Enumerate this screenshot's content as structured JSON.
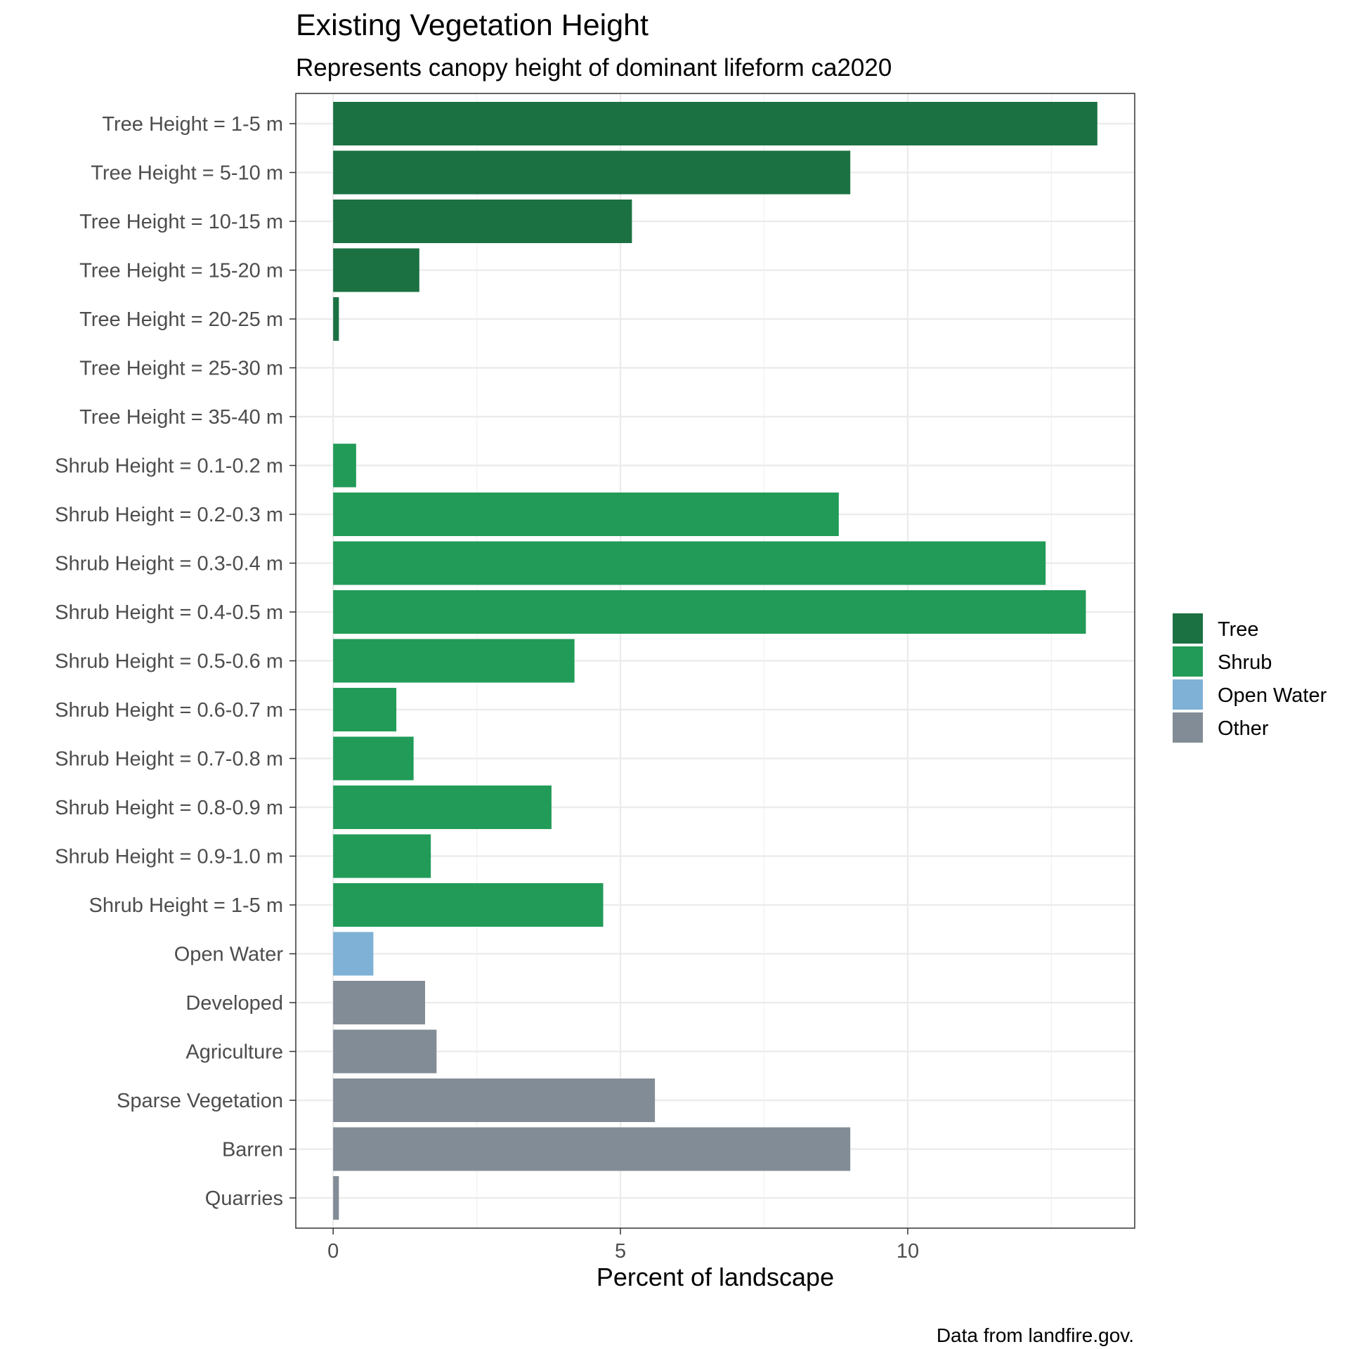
{
  "chart_data": {
    "type": "bar",
    "orientation": "horizontal",
    "title": "Existing Vegetation Height",
    "subtitle": "Represents canopy height of dominant lifeform ca2020",
    "xlabel": "Percent of landscape",
    "ylabel": "",
    "caption": "Data from landfire.gov.",
    "xlim": [
      -0.65,
      13.95
    ],
    "xticks": [
      0,
      5,
      10
    ],
    "grid": true,
    "legend_position": "right",
    "categories": [
      "Tree Height = 1-5 m",
      "Tree Height = 5-10 m",
      "Tree Height = 10-15 m",
      "Tree Height = 15-20 m",
      "Tree Height = 20-25 m",
      "Tree Height = 25-30 m",
      "Tree Height = 35-40 m",
      "Shrub Height = 0.1-0.2 m",
      "Shrub Height = 0.2-0.3 m",
      "Shrub Height = 0.3-0.4 m",
      "Shrub Height = 0.4-0.5 m",
      "Shrub Height = 0.5-0.6 m",
      "Shrub Height = 0.6-0.7 m",
      "Shrub Height = 0.7-0.8 m",
      "Shrub Height = 0.8-0.9 m",
      "Shrub Height = 0.9-1.0 m",
      "Shrub Height = 1-5 m",
      "Open Water",
      "Developed",
      "Agriculture",
      "Sparse Vegetation",
      "Barren",
      "Quarries"
    ],
    "values": [
      13.3,
      9.0,
      5.2,
      1.5,
      0.1,
      0.0,
      0.0,
      0.4,
      8.8,
      12.4,
      13.1,
      4.2,
      1.1,
      1.4,
      3.8,
      1.7,
      4.7,
      0.7,
      1.6,
      1.8,
      5.6,
      9.0,
      0.1
    ],
    "groups": [
      "Tree",
      "Tree",
      "Tree",
      "Tree",
      "Tree",
      "Tree",
      "Tree",
      "Shrub",
      "Shrub",
      "Shrub",
      "Shrub",
      "Shrub",
      "Shrub",
      "Shrub",
      "Shrub",
      "Shrub",
      "Shrub",
      "Open Water",
      "Other",
      "Other",
      "Other",
      "Other",
      "Other"
    ],
    "legend": [
      {
        "name": "Tree",
        "color": "#1b7142"
      },
      {
        "name": "Shrub",
        "color": "#229b58"
      },
      {
        "name": "Open Water",
        "color": "#7eb1d5"
      },
      {
        "name": "Other",
        "color": "#828c96"
      }
    ]
  }
}
